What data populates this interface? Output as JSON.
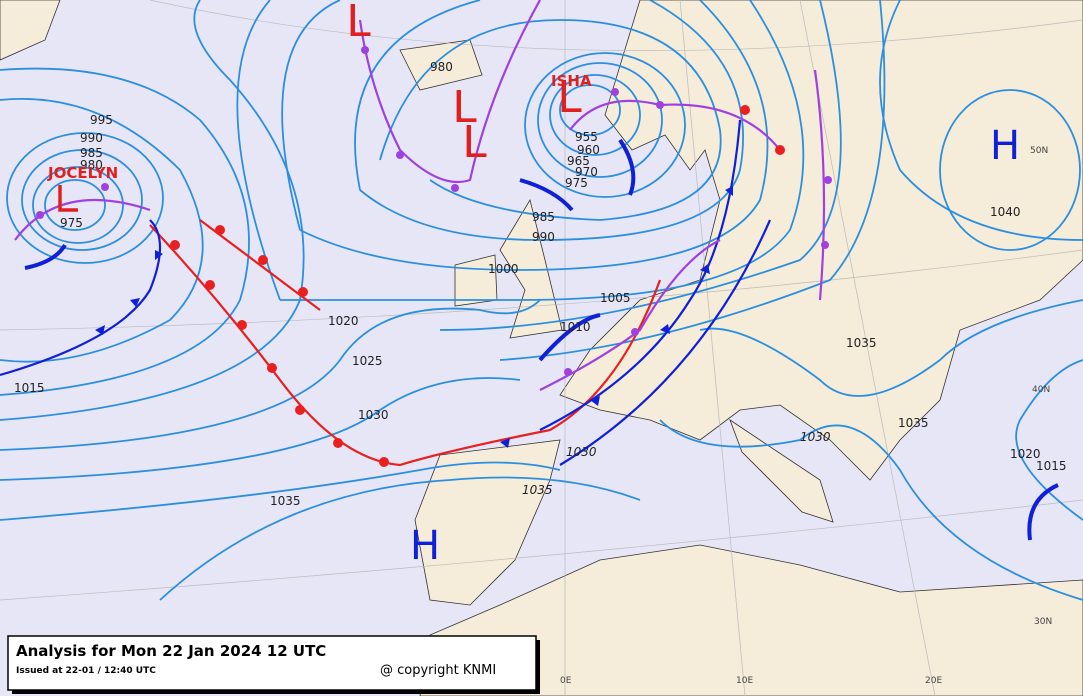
{
  "title": "Analysis for Mon 22 Jan 2024 12 UTC",
  "issued": "Issued at 22-01 / 12:40 UTC",
  "copyright": "@ copyright KNMI",
  "storm_names": [
    "JOCELYN",
    "ISHA"
  ],
  "systems": [
    "L",
    "L",
    "L",
    "L",
    "H",
    "H"
  ],
  "isobar_labels": [
    995,
    990,
    985,
    980,
    975,
    1015,
    1020,
    1025,
    1030,
    1035,
    980,
    955,
    960,
    965,
    970,
    975,
    985,
    990,
    1000,
    1005,
    1010,
    1035,
    1040,
    1035,
    1030,
    1020,
    1015,
    1030,
    1035
  ],
  "grid_labels": [
    "50N",
    "40N",
    "30N",
    "0E",
    "10E",
    "20E"
  ]
}
